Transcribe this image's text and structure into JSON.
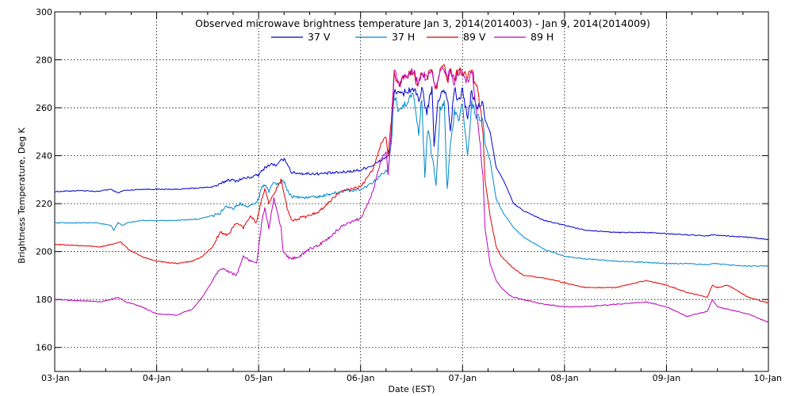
{
  "chart_data": {
    "type": "line",
    "title": "Observed microwave brightness temperature Jan  3, 2014(2014003) - Jan  9, 2014(2014009)",
    "xlabel": "Date (EST)",
    "ylabel": "Brightness Temperature, Deg K",
    "ylim": [
      150,
      300
    ],
    "yticks": [
      160,
      180,
      200,
      220,
      240,
      260,
      280,
      300
    ],
    "xlim": [
      "2014-01-03",
      "2014-01-10"
    ],
    "xticks": [
      "03-Jan",
      "04-Jan",
      "05-Jan",
      "06-Jan",
      "07-Jan",
      "08-Jan",
      "09-Jan",
      "10-Jan"
    ],
    "grid": true,
    "legend_position": "top",
    "x_unit": "days since 03-Jan",
    "series": [
      {
        "name": "37 V",
        "color": "#0000cc",
        "points": [
          [
            0,
            225
          ],
          [
            0.25,
            225.5
          ],
          [
            0.4,
            225
          ],
          [
            0.55,
            226
          ],
          [
            0.62,
            224.5
          ],
          [
            0.68,
            225.5
          ],
          [
            0.85,
            226
          ],
          [
            1.0,
            226
          ],
          [
            1.2,
            226
          ],
          [
            1.4,
            226.5
          ],
          [
            1.55,
            227
          ],
          [
            1.62,
            228
          ],
          [
            1.7,
            230
          ],
          [
            1.78,
            229.5
          ],
          [
            1.85,
            230.5
          ],
          [
            1.92,
            231
          ],
          [
            2.0,
            232
          ],
          [
            2.06,
            235
          ],
          [
            2.12,
            236.5
          ],
          [
            2.18,
            236
          ],
          [
            2.22,
            238
          ],
          [
            2.25,
            238.5
          ],
          [
            2.28,
            237
          ],
          [
            2.32,
            233
          ],
          [
            2.45,
            232.5
          ],
          [
            2.6,
            232.5
          ],
          [
            2.8,
            233
          ],
          [
            3.0,
            234
          ],
          [
            3.05,
            235
          ],
          [
            3.12,
            236
          ],
          [
            3.2,
            238
          ],
          [
            3.27,
            240
          ],
          [
            3.3,
            245
          ],
          [
            3.33,
            268
          ],
          [
            3.38,
            265
          ],
          [
            3.45,
            267
          ],
          [
            3.52,
            268
          ],
          [
            3.58,
            262
          ],
          [
            3.6,
            268
          ],
          [
            3.65,
            258
          ],
          [
            3.7,
            268
          ],
          [
            3.72,
            245
          ],
          [
            3.76,
            262
          ],
          [
            3.8,
            268
          ],
          [
            3.85,
            265
          ],
          [
            3.88,
            250
          ],
          [
            3.92,
            268
          ],
          [
            3.96,
            262
          ],
          [
            4.0,
            268
          ],
          [
            4.05,
            255
          ],
          [
            4.09,
            267
          ],
          [
            4.12,
            262
          ],
          [
            4.15,
            260
          ],
          [
            4.2,
            262
          ],
          [
            4.22,
            255
          ],
          [
            4.27,
            250
          ],
          [
            4.33,
            235
          ],
          [
            4.4,
            230
          ],
          [
            4.5,
            220
          ],
          [
            4.6,
            217
          ],
          [
            4.8,
            213
          ],
          [
            5.0,
            211
          ],
          [
            5.2,
            209
          ],
          [
            5.5,
            208
          ],
          [
            5.8,
            208
          ],
          [
            6.0,
            207.5
          ],
          [
            6.2,
            207
          ],
          [
            6.4,
            206.5
          ],
          [
            6.45,
            207
          ],
          [
            6.6,
            206.5
          ],
          [
            6.8,
            206
          ],
          [
            7.0,
            205
          ]
        ]
      },
      {
        "name": "37 H",
        "color": "#0088cc",
        "points": [
          [
            0,
            212
          ],
          [
            0.25,
            212
          ],
          [
            0.4,
            212
          ],
          [
            0.55,
            211
          ],
          [
            0.58,
            209
          ],
          [
            0.62,
            212
          ],
          [
            0.66,
            211
          ],
          [
            0.72,
            212
          ],
          [
            0.85,
            213
          ],
          [
            1.0,
            213
          ],
          [
            1.2,
            213
          ],
          [
            1.4,
            213.5
          ],
          [
            1.55,
            215
          ],
          [
            1.62,
            216
          ],
          [
            1.68,
            219
          ],
          [
            1.75,
            218
          ],
          [
            1.82,
            220
          ],
          [
            1.9,
            219
          ],
          [
            1.95,
            219.5
          ],
          [
            2.0,
            222
          ],
          [
            2.03,
            227
          ],
          [
            2.06,
            228
          ],
          [
            2.1,
            225
          ],
          [
            2.15,
            229
          ],
          [
            2.2,
            228
          ],
          [
            2.24,
            230
          ],
          [
            2.28,
            226
          ],
          [
            2.32,
            223
          ],
          [
            2.45,
            222.5
          ],
          [
            2.6,
            223
          ],
          [
            2.7,
            224
          ],
          [
            2.8,
            225
          ],
          [
            3.0,
            226
          ],
          [
            3.05,
            227
          ],
          [
            3.12,
            229
          ],
          [
            3.2,
            232
          ],
          [
            3.27,
            234
          ],
          [
            3.3,
            245
          ],
          [
            3.33,
            265
          ],
          [
            3.38,
            258
          ],
          [
            3.45,
            262
          ],
          [
            3.52,
            266
          ],
          [
            3.57,
            250
          ],
          [
            3.6,
            264
          ],
          [
            3.63,
            230
          ],
          [
            3.66,
            252
          ],
          [
            3.7,
            240
          ],
          [
            3.74,
            228
          ],
          [
            3.78,
            260
          ],
          [
            3.82,
            262
          ],
          [
            3.85,
            225
          ],
          [
            3.88,
            245
          ],
          [
            3.92,
            258
          ],
          [
            3.96,
            255
          ],
          [
            4.0,
            262
          ],
          [
            4.05,
            240
          ],
          [
            4.09,
            262
          ],
          [
            4.12,
            258
          ],
          [
            4.15,
            256
          ],
          [
            4.2,
            255
          ],
          [
            4.22,
            245
          ],
          [
            4.27,
            238
          ],
          [
            4.33,
            222
          ],
          [
            4.4,
            216
          ],
          [
            4.5,
            210
          ],
          [
            4.6,
            206
          ],
          [
            4.8,
            201
          ],
          [
            5.0,
            198
          ],
          [
            5.2,
            197
          ],
          [
            5.5,
            196
          ],
          [
            5.8,
            195.5
          ],
          [
            6.0,
            195
          ],
          [
            6.2,
            195
          ],
          [
            6.4,
            194.5
          ],
          [
            6.45,
            195
          ],
          [
            6.6,
            194.5
          ],
          [
            6.8,
            194
          ],
          [
            7.0,
            194
          ]
        ]
      },
      {
        "name": "89 V",
        "color": "#e00000",
        "points": [
          [
            0,
            203
          ],
          [
            0.25,
            202.5
          ],
          [
            0.45,
            202
          ],
          [
            0.55,
            203
          ],
          [
            0.65,
            204
          ],
          [
            0.72,
            201
          ],
          [
            0.85,
            198
          ],
          [
            1.0,
            196
          ],
          [
            1.2,
            195
          ],
          [
            1.35,
            196
          ],
          [
            1.45,
            198
          ],
          [
            1.55,
            202
          ],
          [
            1.62,
            208
          ],
          [
            1.7,
            207
          ],
          [
            1.78,
            212
          ],
          [
            1.85,
            210
          ],
          [
            1.92,
            215
          ],
          [
            1.98,
            212
          ],
          [
            2.03,
            222
          ],
          [
            2.06,
            226
          ],
          [
            2.1,
            220
          ],
          [
            2.15,
            224
          ],
          [
            2.22,
            230
          ],
          [
            2.24,
            226
          ],
          [
            2.28,
            218
          ],
          [
            2.32,
            213
          ],
          [
            2.4,
            214
          ],
          [
            2.5,
            215
          ],
          [
            2.6,
            217
          ],
          [
            2.7,
            221
          ],
          [
            2.8,
            225
          ],
          [
            3.0,
            227
          ],
          [
            3.05,
            230
          ],
          [
            3.12,
            234
          ],
          [
            3.2,
            245
          ],
          [
            3.25,
            248
          ],
          [
            3.27,
            240
          ],
          [
            3.3,
            255
          ],
          [
            3.33,
            274
          ],
          [
            3.38,
            270
          ],
          [
            3.45,
            273
          ],
          [
            3.52,
            275
          ],
          [
            3.56,
            268
          ],
          [
            3.6,
            275
          ],
          [
            3.65,
            273
          ],
          [
            3.7,
            276
          ],
          [
            3.74,
            268
          ],
          [
            3.78,
            275
          ],
          [
            3.82,
            277
          ],
          [
            3.85,
            270
          ],
          [
            3.88,
            276
          ],
          [
            3.92,
            272
          ],
          [
            3.96,
            276
          ],
          [
            4.0,
            275
          ],
          [
            4.05,
            272
          ],
          [
            4.09,
            277
          ],
          [
            4.12,
            270
          ],
          [
            4.15,
            268
          ],
          [
            4.2,
            250
          ],
          [
            4.22,
            230
          ],
          [
            4.27,
            215
          ],
          [
            4.33,
            202
          ],
          [
            4.38,
            198
          ],
          [
            4.45,
            195
          ],
          [
            4.5,
            193
          ],
          [
            4.6,
            190
          ],
          [
            4.8,
            189
          ],
          [
            5.0,
            187
          ],
          [
            5.2,
            185
          ],
          [
            5.5,
            185
          ],
          [
            5.8,
            188
          ],
          [
            6.0,
            186
          ],
          [
            6.2,
            183
          ],
          [
            6.4,
            181
          ],
          [
            6.45,
            186
          ],
          [
            6.5,
            185
          ],
          [
            6.6,
            186
          ],
          [
            6.8,
            181
          ],
          [
            7.0,
            178.5
          ]
        ]
      },
      {
        "name": "89 H",
        "color": "#bb00bb",
        "points": [
          [
            0,
            180
          ],
          [
            0.25,
            179.5
          ],
          [
            0.45,
            179
          ],
          [
            0.55,
            180
          ],
          [
            0.62,
            181
          ],
          [
            0.7,
            179
          ],
          [
            0.85,
            177
          ],
          [
            1.0,
            174
          ],
          [
            1.2,
            173.5
          ],
          [
            1.35,
            176
          ],
          [
            1.45,
            181
          ],
          [
            1.55,
            188
          ],
          [
            1.62,
            193
          ],
          [
            1.7,
            192
          ],
          [
            1.78,
            190
          ],
          [
            1.85,
            198
          ],
          [
            1.92,
            196
          ],
          [
            1.98,
            195
          ],
          [
            2.03,
            212
          ],
          [
            2.06,
            218
          ],
          [
            2.1,
            210
          ],
          [
            2.15,
            222
          ],
          [
            2.22,
            210
          ],
          [
            2.24,
            200
          ],
          [
            2.28,
            198
          ],
          [
            2.32,
            197
          ],
          [
            2.4,
            198
          ],
          [
            2.5,
            201
          ],
          [
            2.6,
            203
          ],
          [
            2.7,
            206
          ],
          [
            2.8,
            210
          ],
          [
            3.0,
            214
          ],
          [
            3.05,
            218
          ],
          [
            3.12,
            225
          ],
          [
            3.2,
            238
          ],
          [
            3.25,
            242
          ],
          [
            3.27,
            232
          ],
          [
            3.3,
            250
          ],
          [
            3.33,
            275
          ],
          [
            3.38,
            270
          ],
          [
            3.45,
            274
          ],
          [
            3.52,
            276
          ],
          [
            3.56,
            270
          ],
          [
            3.6,
            275
          ],
          [
            3.65,
            272
          ],
          [
            3.7,
            276
          ],
          [
            3.74,
            268
          ],
          [
            3.78,
            275
          ],
          [
            3.82,
            276
          ],
          [
            3.85,
            272
          ],
          [
            3.88,
            275
          ],
          [
            3.92,
            270
          ],
          [
            3.96,
            275
          ],
          [
            4.0,
            274
          ],
          [
            4.05,
            270
          ],
          [
            4.09,
            276
          ],
          [
            4.12,
            265
          ],
          [
            4.15,
            255
          ],
          [
            4.2,
            232
          ],
          [
            4.22,
            210
          ],
          [
            4.27,
            195
          ],
          [
            4.33,
            188
          ],
          [
            4.38,
            185
          ],
          [
            4.45,
            182
          ],
          [
            4.5,
            181
          ],
          [
            4.6,
            180
          ],
          [
            4.8,
            178
          ],
          [
            5.0,
            177
          ],
          [
            5.2,
            177
          ],
          [
            5.5,
            178
          ],
          [
            5.8,
            179
          ],
          [
            6.0,
            177
          ],
          [
            6.2,
            173
          ],
          [
            6.4,
            175
          ],
          [
            6.45,
            180
          ],
          [
            6.5,
            177
          ],
          [
            6.6,
            176
          ],
          [
            6.8,
            174
          ],
          [
            7.0,
            170.5
          ]
        ]
      }
    ]
  }
}
